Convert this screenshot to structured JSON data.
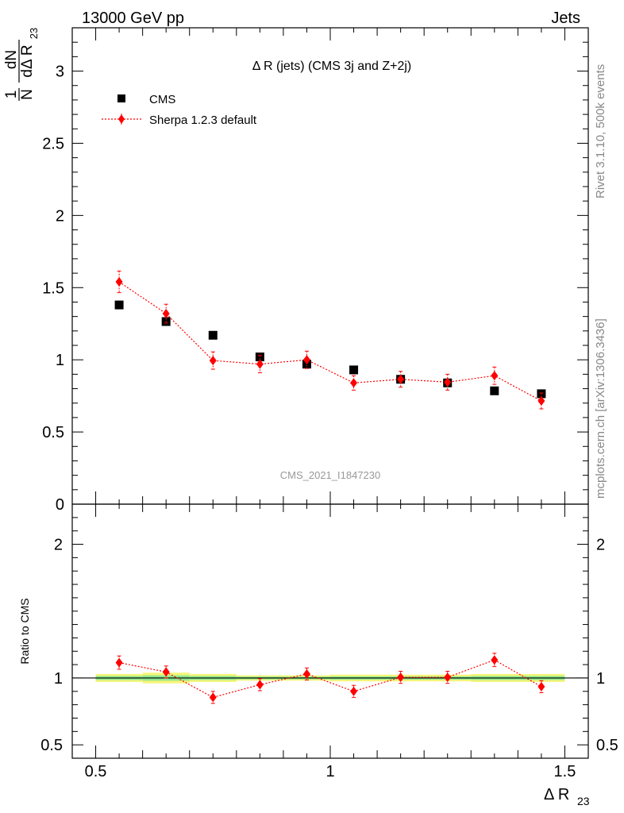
{
  "header": {
    "left": "13000 GeV pp",
    "right": "Jets"
  },
  "side_text": {
    "rivet": "Rivet 3.1.10,  500k events",
    "mcplots": "mcplots.cern.ch [arXiv:1306.3436]"
  },
  "chart_data": [
    {
      "type": "scatter",
      "title": "Δ R (jets) (CMS 3j and Z+2j)",
      "analysis_id": "CMS_2021_I1847230",
      "ylabel": "1/N dN/dΔ R23",
      "ylabel_parts": {
        "one": "1",
        "N": "N",
        "dN": "dN",
        "dDR": "dΔ R",
        "sub": "23"
      },
      "xlim": [
        0.45,
        1.55
      ],
      "ylim": [
        0,
        3.3
      ],
      "x_ticks": [
        "0.5",
        "1",
        "1.5"
      ],
      "y_ticks": [
        "0",
        "0.5",
        "1",
        "1.5",
        "2",
        "2.5",
        "3"
      ],
      "legend": {
        "position": "top-left",
        "entries": [
          "CMS",
          "Sherpa 1.2.3 default"
        ]
      },
      "series": [
        {
          "name": "CMS",
          "marker": "square",
          "color": "#000000",
          "x": [
            0.55,
            0.65,
            0.75,
            0.85,
            0.95,
            1.05,
            1.15,
            1.25,
            1.35,
            1.45
          ],
          "y": [
            1.38,
            1.265,
            1.17,
            1.02,
            0.97,
            0.93,
            0.865,
            0.84,
            0.785,
            0.765
          ]
        },
        {
          "name": "Sherpa 1.2.3 default",
          "marker": "diamond",
          "color": "#ff0000",
          "x": [
            0.55,
            0.65,
            0.75,
            0.85,
            0.95,
            1.05,
            1.15,
            1.25,
            1.35,
            1.45
          ],
          "y": [
            1.54,
            1.32,
            0.995,
            0.97,
            1.0,
            0.84,
            0.865,
            0.845,
            0.89,
            0.715
          ],
          "err": [
            0.075,
            0.065,
            0.06,
            0.06,
            0.06,
            0.05,
            0.055,
            0.055,
            0.06,
            0.055
          ]
        }
      ]
    },
    {
      "type": "scatter",
      "xlabel": "Δ R23",
      "xlabel_parts": {
        "main": "Δ R",
        "sub": "23"
      },
      "ylabel": "Ratio to CMS",
      "xlim": [
        0.45,
        1.55
      ],
      "ylim": [
        0.4,
        2.3
      ],
      "x_ticks": [
        "0.5",
        "1",
        "1.5"
      ],
      "y_ticks": [
        "0.5",
        "1",
        "2"
      ],
      "reference_line": 1,
      "band": {
        "x_edges": [
          0.5,
          0.6,
          0.7,
          0.8,
          0.9,
          1.0,
          1.1,
          1.2,
          1.3,
          1.4,
          1.5
        ],
        "yellow_halfwidth": [
          0.03,
          0.04,
          0.03,
          0.02,
          0.02,
          0.025,
          0.025,
          0.025,
          0.03,
          0.03
        ],
        "green_halfwidth": [
          0.015,
          0.02,
          0.015,
          0.01,
          0.01,
          0.012,
          0.012,
          0.012,
          0.015,
          0.015
        ]
      },
      "series": [
        {
          "name": "Sherpa 1.2.3 default",
          "marker": "diamond",
          "color": "#ff0000",
          "x": [
            0.55,
            0.65,
            0.75,
            0.85,
            0.95,
            1.05,
            1.15,
            1.25,
            1.35,
            1.45
          ],
          "y": [
            1.115,
            1.045,
            0.855,
            0.95,
            1.03,
            0.9,
            1.005,
            1.005,
            1.135,
            0.935
          ],
          "err": [
            0.05,
            0.045,
            0.045,
            0.045,
            0.045,
            0.045,
            0.045,
            0.045,
            0.05,
            0.045
          ]
        }
      ]
    }
  ]
}
